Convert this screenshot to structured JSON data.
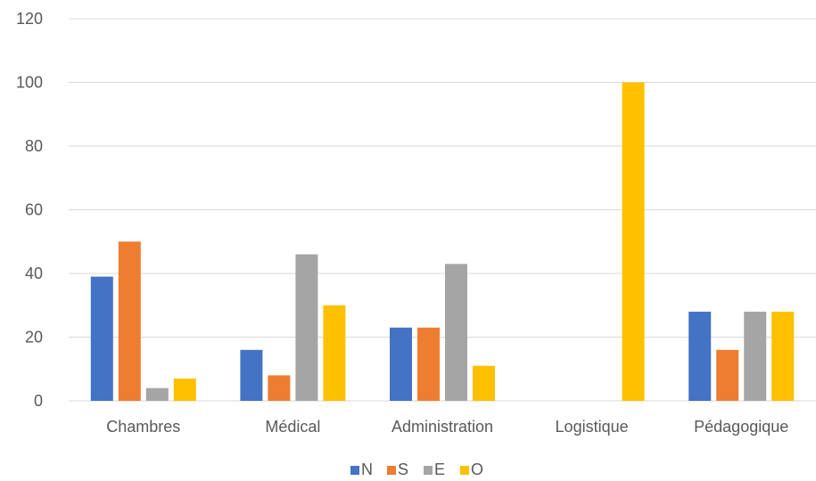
{
  "chart_data": {
    "type": "bar",
    "categories": [
      "Chambres",
      "Médical",
      "Administration",
      "Logistique",
      "Pédagogique"
    ],
    "series": [
      {
        "name": "N",
        "color": "#4472c4",
        "values": [
          39,
          16,
          23,
          0,
          28
        ]
      },
      {
        "name": "S",
        "color": "#ed7d31",
        "values": [
          50,
          8,
          23,
          0,
          16
        ]
      },
      {
        "name": "E",
        "color": "#a5a5a5",
        "values": [
          4,
          46,
          43,
          0,
          28
        ]
      },
      {
        "name": "O",
        "color": "#ffc000",
        "values": [
          7,
          30,
          11,
          100,
          28
        ]
      }
    ],
    "yticks": [
      "0",
      "20",
      "40",
      "60",
      "80",
      "100",
      "120"
    ],
    "ylim": [
      0,
      120
    ],
    "grid": true,
    "legend_position": "bottom"
  }
}
